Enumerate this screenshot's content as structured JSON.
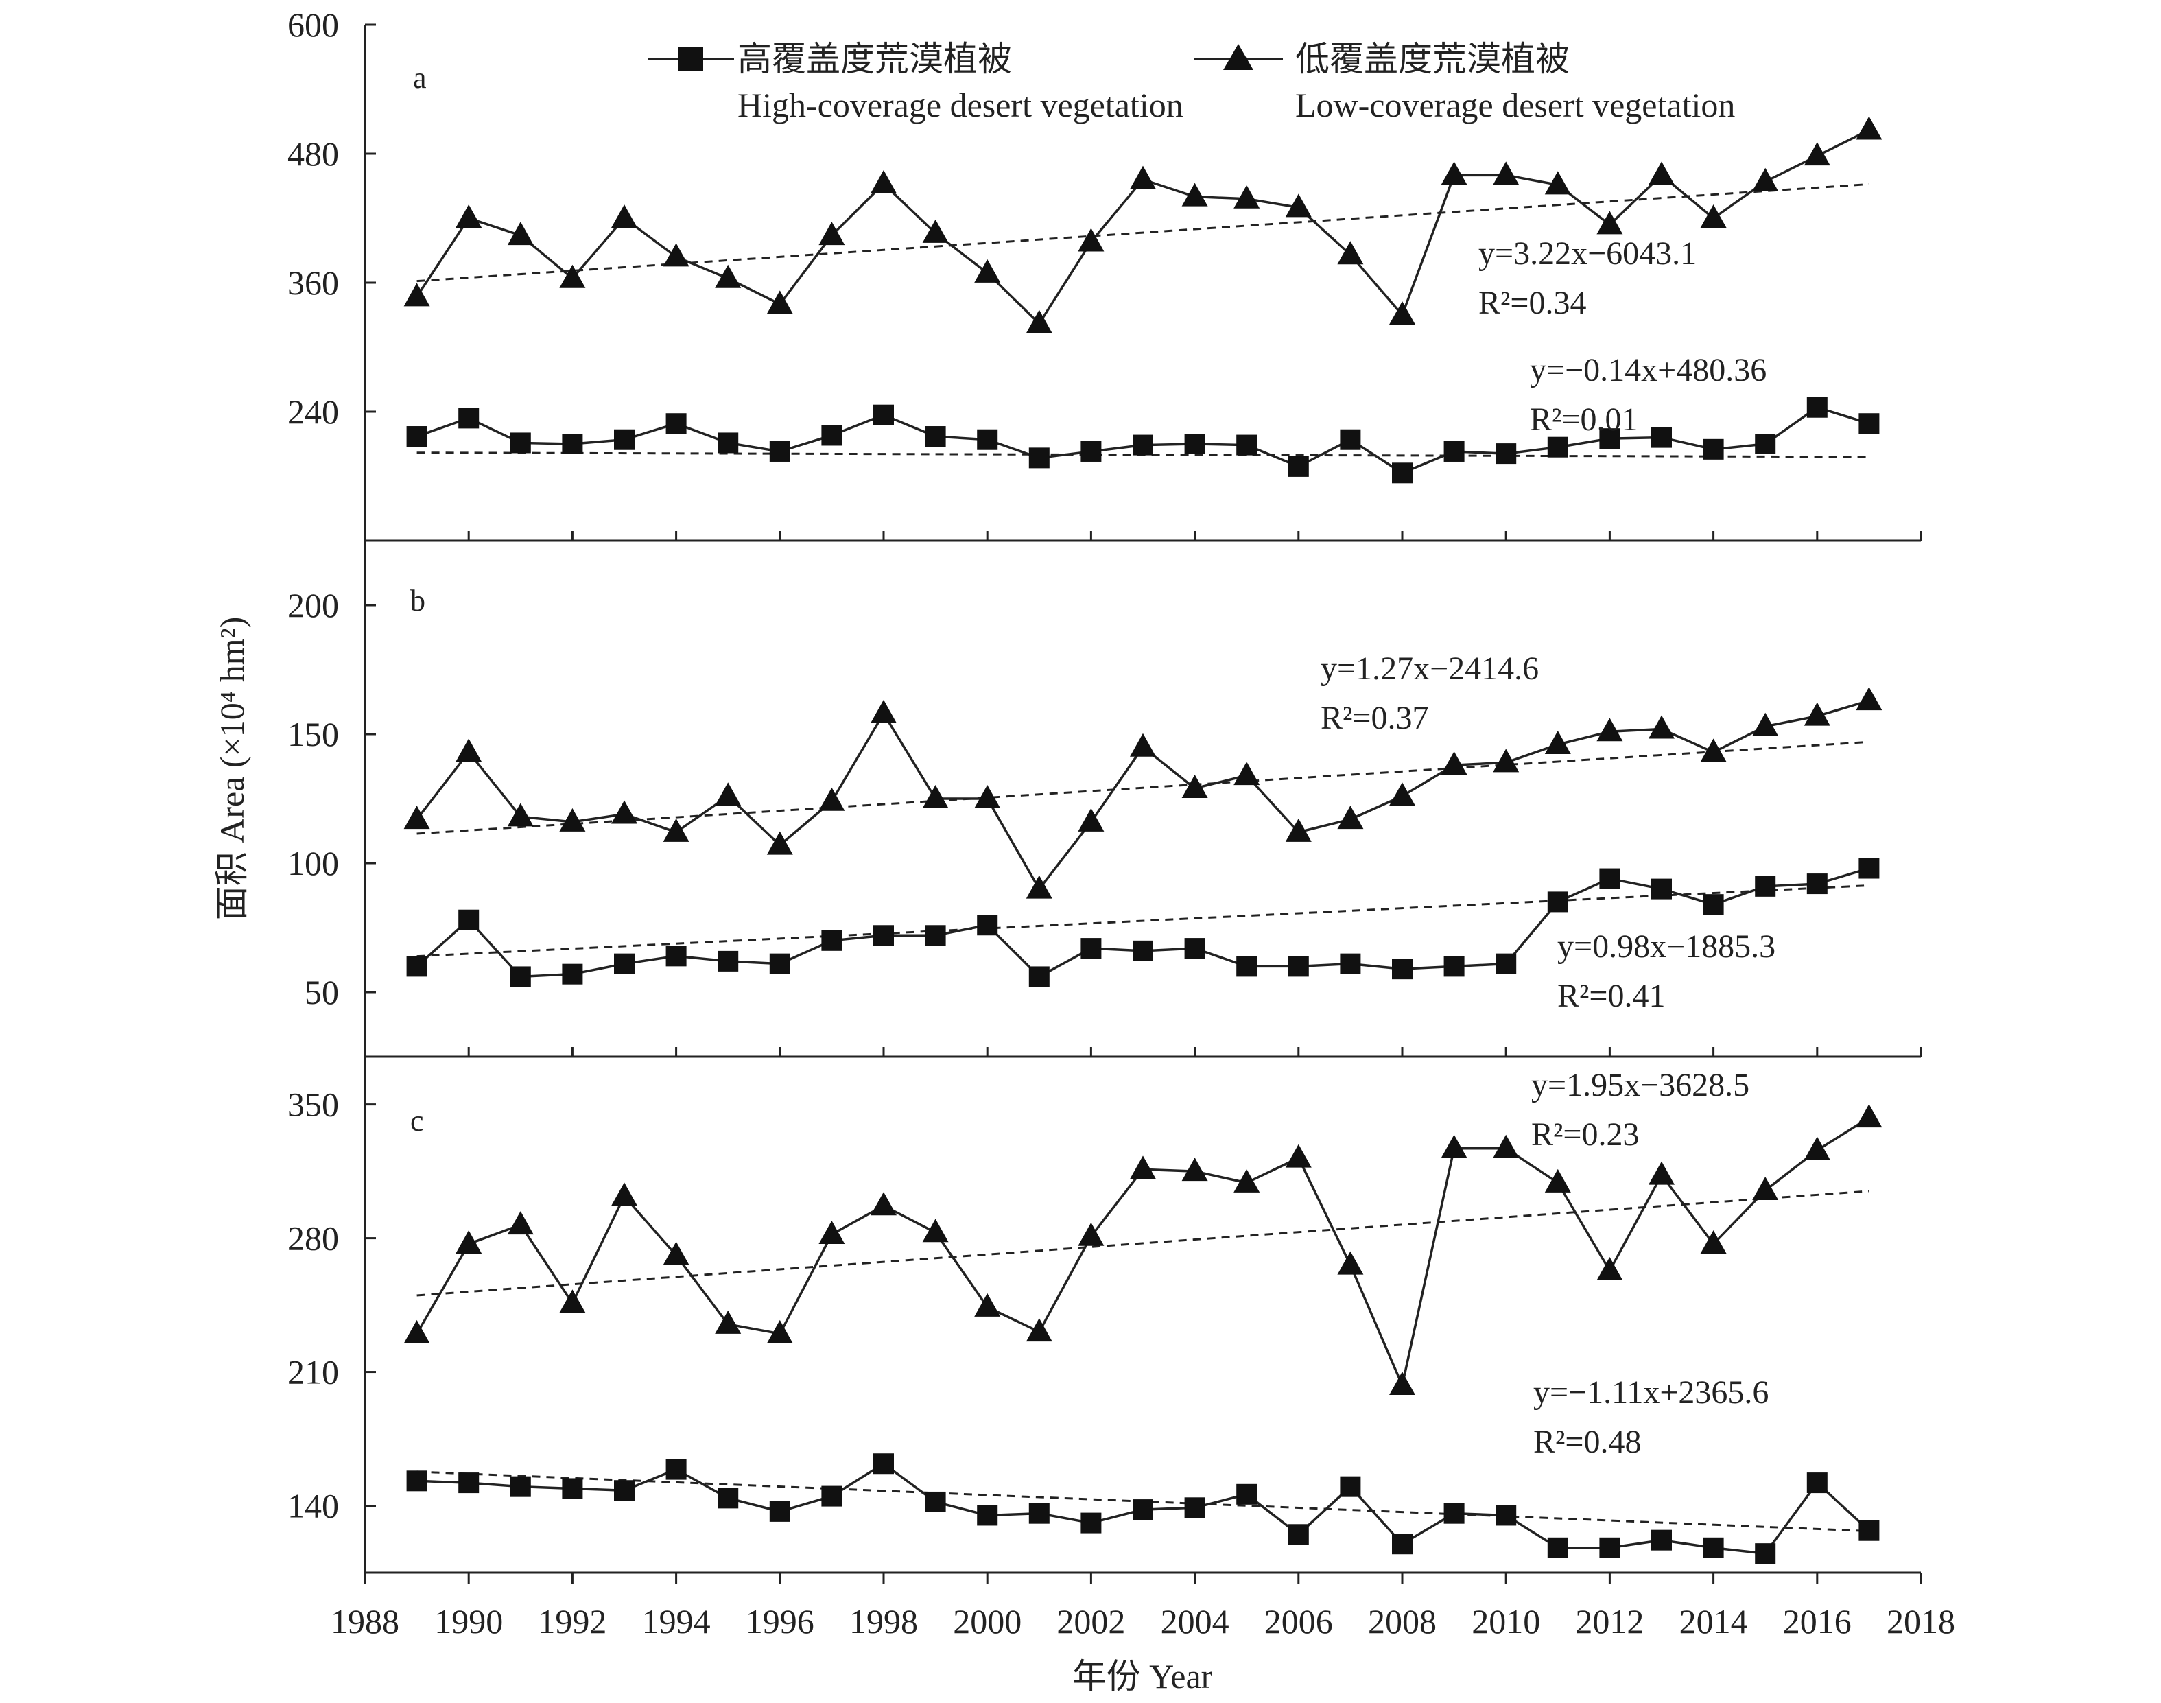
{
  "legend": {
    "high_cn": "高覆盖度荒漠植被",
    "high_en": "High-coverage desert vegetation",
    "low_cn": "低覆盖度荒漠植被",
    "low_en": "Low-coverage desert vegetation"
  },
  "ylabel": "面积 Area (×10⁴ hm²)",
  "xlabel": "年份 Year",
  "chart_data": [
    {
      "type": "line",
      "panel": "a",
      "xlim": [
        1988,
        2018
      ],
      "ylim": [
        120,
        600
      ],
      "xticks": [
        1988,
        1990,
        1992,
        1994,
        1996,
        1998,
        2000,
        2002,
        2004,
        2006,
        2008,
        2010,
        2012,
        2014,
        2016,
        2018
      ],
      "yticks": [
        240,
        360,
        480,
        600
      ],
      "x": [
        1989,
        1990,
        1991,
        1992,
        1993,
        1994,
        1995,
        1996,
        1997,
        1998,
        1999,
        2000,
        2001,
        2002,
        2003,
        2004,
        2005,
        2006,
        2007,
        2008,
        2009,
        2010,
        2011,
        2012,
        2013,
        2014,
        2015,
        2016,
        2017
      ],
      "series": [
        {
          "name": "高覆盖度荒漠植被 High-coverage desert vegetation",
          "marker": "square",
          "values": [
            217,
            234,
            211,
            210,
            214,
            229,
            211,
            203,
            218,
            237,
            217,
            214,
            197,
            203,
            209,
            210,
            209,
            189,
            214,
            183,
            203,
            201,
            207,
            215,
            216,
            205,
            210,
            244,
            229
          ],
          "trend": {
            "slope": -0.14,
            "intercept": 480.36,
            "equation": "y=−0.14x+480.36",
            "r2": "R²=0.01"
          }
        },
        {
          "name": "低覆盖度荒漠植被 Low-coverage desert vegetation",
          "marker": "triangle",
          "values": [
            347,
            420,
            404,
            364,
            420,
            384,
            364,
            340,
            404,
            452,
            406,
            369,
            322,
            398,
            456,
            440,
            438,
            430,
            386,
            330,
            460,
            460,
            451,
            414,
            460,
            420,
            454,
            478,
            502
          ],
          "trend": {
            "slope": 3.22,
            "intercept": -6043.1,
            "equation": "y=3.22x−6043.1",
            "r2": "R²=0.34"
          }
        }
      ]
    },
    {
      "type": "line",
      "panel": "b",
      "xlim": [
        1988,
        2018
      ],
      "ylim": [
        25,
        225
      ],
      "xticks": [
        1988,
        1990,
        1992,
        1994,
        1996,
        1998,
        2000,
        2002,
        2004,
        2006,
        2008,
        2010,
        2012,
        2014,
        2016,
        2018
      ],
      "yticks": [
        50,
        100,
        150,
        200
      ],
      "x": [
        1989,
        1990,
        1991,
        1992,
        1993,
        1994,
        1995,
        1996,
        1997,
        1998,
        1999,
        2000,
        2001,
        2002,
        2003,
        2004,
        2005,
        2006,
        2007,
        2008,
        2009,
        2010,
        2011,
        2012,
        2013,
        2014,
        2015,
        2016,
        2017
      ],
      "series": [
        {
          "name": "高覆盖度荒漠植被 High-coverage desert vegetation",
          "marker": "square",
          "values": [
            60,
            78,
            56,
            57,
            61,
            64,
            62,
            61,
            70,
            72,
            72,
            76,
            56,
            67,
            66,
            67,
            60,
            60,
            61,
            59,
            60,
            61,
            85,
            94,
            90,
            84,
            91,
            92,
            98
          ],
          "trend": {
            "slope": 0.98,
            "intercept": -1885.3,
            "equation": "y=0.98x−1885.3",
            "r2": "R²=0.41"
          }
        },
        {
          "name": "低覆盖度荒漠植被 Low-coverage desert vegetation",
          "marker": "triangle",
          "values": [
            117,
            143,
            118,
            116,
            119,
            112,
            126,
            107,
            124,
            158,
            125,
            125,
            90,
            116,
            145,
            129,
            134,
            112,
            117,
            126,
            138,
            139,
            146,
            151,
            152,
            143,
            153,
            157,
            163
          ],
          "trend": {
            "slope": 1.27,
            "intercept": -2414.6,
            "equation": "y=1.27x−2414.6",
            "r2": "R²=0.37"
          }
        }
      ]
    },
    {
      "type": "line",
      "panel": "c",
      "xlim": [
        1988,
        2018
      ],
      "ylim": [
        105,
        375
      ],
      "xticks": [
        1988,
        1990,
        1992,
        1994,
        1996,
        1998,
        2000,
        2002,
        2004,
        2006,
        2008,
        2010,
        2012,
        2014,
        2016,
        2018
      ],
      "yticks": [
        140,
        210,
        280,
        350
      ],
      "x": [
        1989,
        1990,
        1991,
        1992,
        1993,
        1994,
        1995,
        1996,
        1997,
        1998,
        1999,
        2000,
        2001,
        2002,
        2003,
        2004,
        2005,
        2006,
        2007,
        2008,
        2009,
        2010,
        2011,
        2012,
        2013,
        2014,
        2015,
        2016,
        2017
      ],
      "series": [
        {
          "name": "高覆盖度荒漠植被 High-coverage desert vegetation",
          "marker": "square",
          "values": [
            153,
            152,
            150,
            149,
            148,
            159,
            144,
            137,
            145,
            162,
            142,
            135,
            136,
            131,
            138,
            139,
            146,
            125,
            150,
            120,
            136,
            135,
            118,
            118,
            122,
            118,
            115,
            152,
            127
          ],
          "trend": {
            "slope": -1.11,
            "intercept": 2365.6,
            "equation": "y=−1.11x+2365.6",
            "r2": "R²=0.48"
          }
        },
        {
          "name": "低覆盖度荒漠植被 Low-coverage desert vegetation",
          "marker": "triangle",
          "values": [
            230,
            277,
            287,
            246,
            302,
            271,
            235,
            230,
            282,
            297,
            283,
            244,
            231,
            281,
            316,
            315,
            309,
            322,
            266,
            203,
            327,
            327,
            309,
            263,
            313,
            277,
            305,
            326,
            343
          ],
          "trend": {
            "slope": 1.95,
            "intercept": -3628.5,
            "equation": "y=1.95x−3628.5",
            "r2": "R²=0.23"
          }
        }
      ]
    }
  ]
}
